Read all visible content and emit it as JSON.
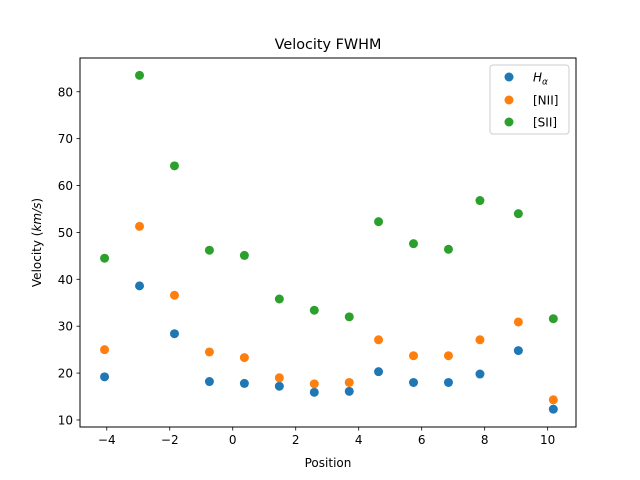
{
  "chart_data": {
    "type": "scatter",
    "title": "Velocity FWHM",
    "xlabel": "Position",
    "ylabel_prefix": "Velocity (",
    "ylabel_unit": "km/s",
    "ylabel_suffix": ")",
    "xlim": [
      -4.85,
      10.9
    ],
    "ylim": [
      8.5,
      87.2
    ],
    "xticks": [
      -4,
      -2,
      0,
      2,
      4,
      6,
      8,
      10
    ],
    "yticks": [
      10,
      20,
      30,
      40,
      50,
      60,
      70,
      80
    ],
    "grid": false,
    "legend_position": "upper right",
    "x": [
      -4.07,
      -2.96,
      -1.85,
      -0.74,
      0.37,
      1.48,
      2.59,
      3.7,
      4.63,
      5.74,
      6.85,
      7.85,
      9.07,
      10.18
    ],
    "series": [
      {
        "name_main": "H",
        "name_sub": "α",
        "color": "#1f77b4",
        "values": [
          19.2,
          38.6,
          28.4,
          18.2,
          17.8,
          17.2,
          15.9,
          16.1,
          20.3,
          18.0,
          18.0,
          19.8,
          24.8,
          12.3
        ]
      },
      {
        "name": "[NII]",
        "color": "#ff7f0e",
        "values": [
          25.0,
          51.3,
          36.6,
          24.5,
          23.3,
          19.0,
          17.7,
          18.0,
          27.1,
          23.7,
          23.7,
          27.1,
          30.9,
          14.3
        ]
      },
      {
        "name": "[SII]",
        "color": "#2ca02c",
        "values": [
          44.5,
          83.5,
          64.2,
          46.2,
          45.1,
          35.8,
          33.4,
          32.0,
          52.3,
          47.6,
          46.4,
          56.8,
          54.0,
          31.6
        ]
      }
    ]
  }
}
